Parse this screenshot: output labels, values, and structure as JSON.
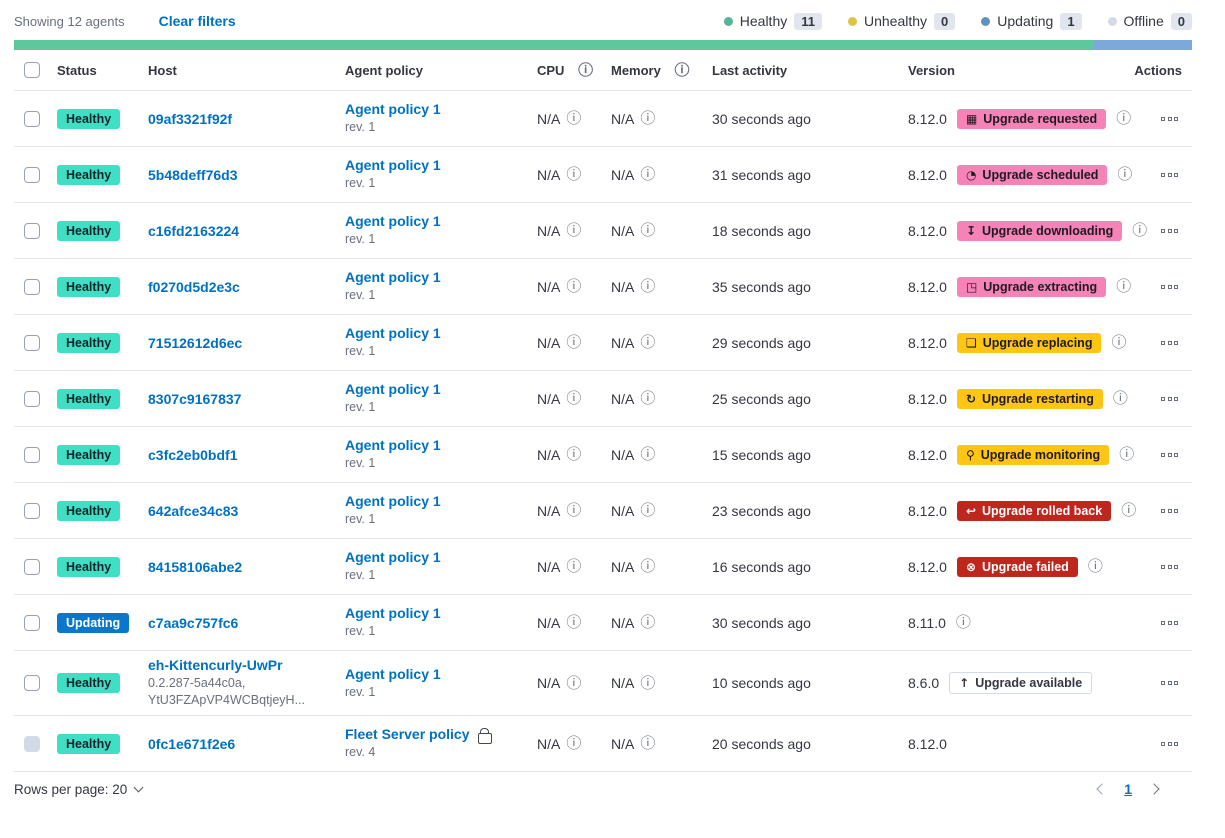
{
  "toolbar": {
    "showing": "Showing 12 agents",
    "clear_filters": "Clear filters"
  },
  "legend": [
    {
      "label": "Healthy",
      "count": "11",
      "color": "#54B399"
    },
    {
      "label": "Unhealthy",
      "count": "0",
      "color": "#DCC543"
    },
    {
      "label": "Updating",
      "count": "1",
      "color": "#6092C0"
    },
    {
      "label": "Offline",
      "count": "0",
      "color": "#D3DAE6"
    }
  ],
  "health_bar": {
    "segments": [
      {
        "status": "healthy",
        "color": "#5EC79B",
        "fraction": 0.9167
      },
      {
        "status": "updating",
        "color": "#7CA8DA",
        "fraction": 0.0833
      }
    ]
  },
  "table": {
    "columns": [
      {
        "label": "Status"
      },
      {
        "label": "Host"
      },
      {
        "label": "Agent policy"
      },
      {
        "label": "CPU",
        "info": true
      },
      {
        "label": "Memory",
        "info": true
      },
      {
        "label": "Last activity"
      },
      {
        "label": "Version"
      },
      {
        "label": "Actions"
      }
    ],
    "rows": [
      {
        "status": "Healthy",
        "status_style": "healthy",
        "host": "09af3321f92f",
        "host_meta": [],
        "policy": "Agent policy 1",
        "policy_rev": "rev. 1",
        "policy_locked": false,
        "cpu": "N/A",
        "memory": "N/A",
        "last_activity": "30 seconds ago",
        "version": "8.12.0",
        "upgrade": {
          "label": "Upgrade requested",
          "style": "pink",
          "icon": "calendar-icon"
        },
        "version_info": true,
        "checkbox_disabled": false
      },
      {
        "status": "Healthy",
        "status_style": "healthy",
        "host": "5b48deff76d3",
        "host_meta": [],
        "policy": "Agent policy 1",
        "policy_rev": "rev. 1",
        "policy_locked": false,
        "cpu": "N/A",
        "memory": "N/A",
        "last_activity": "31 seconds ago",
        "version": "8.12.0",
        "upgrade": {
          "label": "Upgrade scheduled",
          "style": "pink",
          "icon": "clock-icon"
        },
        "version_info": true,
        "checkbox_disabled": false
      },
      {
        "status": "Healthy",
        "status_style": "healthy",
        "host": "c16fd2163224",
        "host_meta": [],
        "policy": "Agent policy 1",
        "policy_rev": "rev. 1",
        "policy_locked": false,
        "cpu": "N/A",
        "memory": "N/A",
        "last_activity": "18 seconds ago",
        "version": "8.12.0",
        "upgrade": {
          "label": "Upgrade downloading",
          "style": "pink",
          "icon": "download-icon"
        },
        "version_info": true,
        "checkbox_disabled": false
      },
      {
        "status": "Healthy",
        "status_style": "healthy",
        "host": "f0270d5d2e3c",
        "host_meta": [],
        "policy": "Agent policy 1",
        "policy_rev": "rev. 1",
        "policy_locked": false,
        "cpu": "N/A",
        "memory": "N/A",
        "last_activity": "35 seconds ago",
        "version": "8.12.0",
        "upgrade": {
          "label": "Upgrade extracting",
          "style": "pink",
          "icon": "package-icon"
        },
        "version_info": true,
        "checkbox_disabled": false
      },
      {
        "status": "Healthy",
        "status_style": "healthy",
        "host": "71512612d6ec",
        "host_meta": [],
        "policy": "Agent policy 1",
        "policy_rev": "rev. 1",
        "policy_locked": false,
        "cpu": "N/A",
        "memory": "N/A",
        "last_activity": "29 seconds ago",
        "version": "8.12.0",
        "upgrade": {
          "label": "Upgrade replacing",
          "style": "yellow",
          "icon": "document-icon"
        },
        "version_info": true,
        "checkbox_disabled": false
      },
      {
        "status": "Healthy",
        "status_style": "healthy",
        "host": "8307c9167837",
        "host_meta": [],
        "policy": "Agent policy 1",
        "policy_rev": "rev. 1",
        "policy_locked": false,
        "cpu": "N/A",
        "memory": "N/A",
        "last_activity": "25 seconds ago",
        "version": "8.12.0",
        "upgrade": {
          "label": "Upgrade restarting",
          "style": "yellow",
          "icon": "refresh-icon"
        },
        "version_info": true,
        "checkbox_disabled": false
      },
      {
        "status": "Healthy",
        "status_style": "healthy",
        "host": "c3fc2eb0bdf1",
        "host_meta": [],
        "policy": "Agent policy 1",
        "policy_rev": "rev. 1",
        "policy_locked": false,
        "cpu": "N/A",
        "memory": "N/A",
        "last_activity": "15 seconds ago",
        "version": "8.12.0",
        "upgrade": {
          "label": "Upgrade monitoring",
          "style": "yellow",
          "icon": "inspect-icon"
        },
        "version_info": true,
        "checkbox_disabled": false
      },
      {
        "status": "Healthy",
        "status_style": "healthy",
        "host": "642afce34c83",
        "host_meta": [],
        "policy": "Agent policy 1",
        "policy_rev": "rev. 1",
        "policy_locked": false,
        "cpu": "N/A",
        "memory": "N/A",
        "last_activity": "23 seconds ago",
        "version": "8.12.0",
        "upgrade": {
          "label": "Upgrade rolled back",
          "style": "red",
          "icon": "rollback-icon"
        },
        "version_info": true,
        "checkbox_disabled": false
      },
      {
        "status": "Healthy",
        "status_style": "healthy",
        "host": "84158106abe2",
        "host_meta": [],
        "policy": "Agent policy 1",
        "policy_rev": "rev. 1",
        "policy_locked": false,
        "cpu": "N/A",
        "memory": "N/A",
        "last_activity": "16 seconds ago",
        "version": "8.12.0",
        "upgrade": {
          "label": "Upgrade failed",
          "style": "red",
          "icon": "failed-icon"
        },
        "version_info": true,
        "checkbox_disabled": false
      },
      {
        "status": "Updating",
        "status_style": "updating",
        "host": "c7aa9c757fc6",
        "host_meta": [],
        "policy": "Agent policy 1",
        "policy_rev": "rev. 1",
        "policy_locked": false,
        "cpu": "N/A",
        "memory": "N/A",
        "last_activity": "30 seconds ago",
        "version": "8.11.0",
        "upgrade": null,
        "version_info": true,
        "checkbox_disabled": false
      },
      {
        "status": "Healthy",
        "status_style": "healthy",
        "host": "eh-Kittencurly-UwPr",
        "host_meta": [
          "0.2.287-5a44c0a,",
          "YtU3FZApVP4WCBqtjeyH..."
        ],
        "policy": "Agent policy 1",
        "policy_rev": "rev. 1",
        "policy_locked": false,
        "cpu": "N/A",
        "memory": "N/A",
        "last_activity": "10 seconds ago",
        "version": "8.6.0",
        "upgrade": {
          "label": "Upgrade available",
          "style": "hollow",
          "icon": "upgrade-icon"
        },
        "version_info": false,
        "checkbox_disabled": false
      },
      {
        "status": "Healthy",
        "status_style": "healthy",
        "host": "0fc1e671f2e6",
        "host_meta": [],
        "policy": "Fleet Server policy",
        "policy_rev": "rev. 4",
        "policy_locked": true,
        "cpu": "N/A",
        "memory": "N/A",
        "last_activity": "20 seconds ago",
        "version": "8.12.0",
        "upgrade": null,
        "version_info": false,
        "checkbox_disabled": true
      }
    ]
  },
  "footer": {
    "rows_per_page": "Rows per page: 20",
    "page": "1"
  },
  "icons": {
    "calendar-icon": "▦",
    "clock-icon": "◔",
    "download-icon": "↧",
    "package-icon": "◳",
    "document-icon": "❏",
    "refresh-icon": "↻",
    "inspect-icon": "⚲",
    "rollback-icon": "↩",
    "failed-icon": "⊗",
    "upgrade-icon": "↑",
    "info-icon": "ⓘ"
  },
  "colors": {
    "link": "#0071C2",
    "healthy_badge": "#40DEC4",
    "updating_badge": "#0877CC",
    "upgrade_pink": "#F583B7",
    "upgrade_yellow": "#FEC514",
    "upgrade_red": "#BD271E",
    "bar_healthy": "#5EC79B",
    "bar_updating": "#7CA8DA",
    "text": "#343741",
    "muted_text": "#69707D"
  }
}
